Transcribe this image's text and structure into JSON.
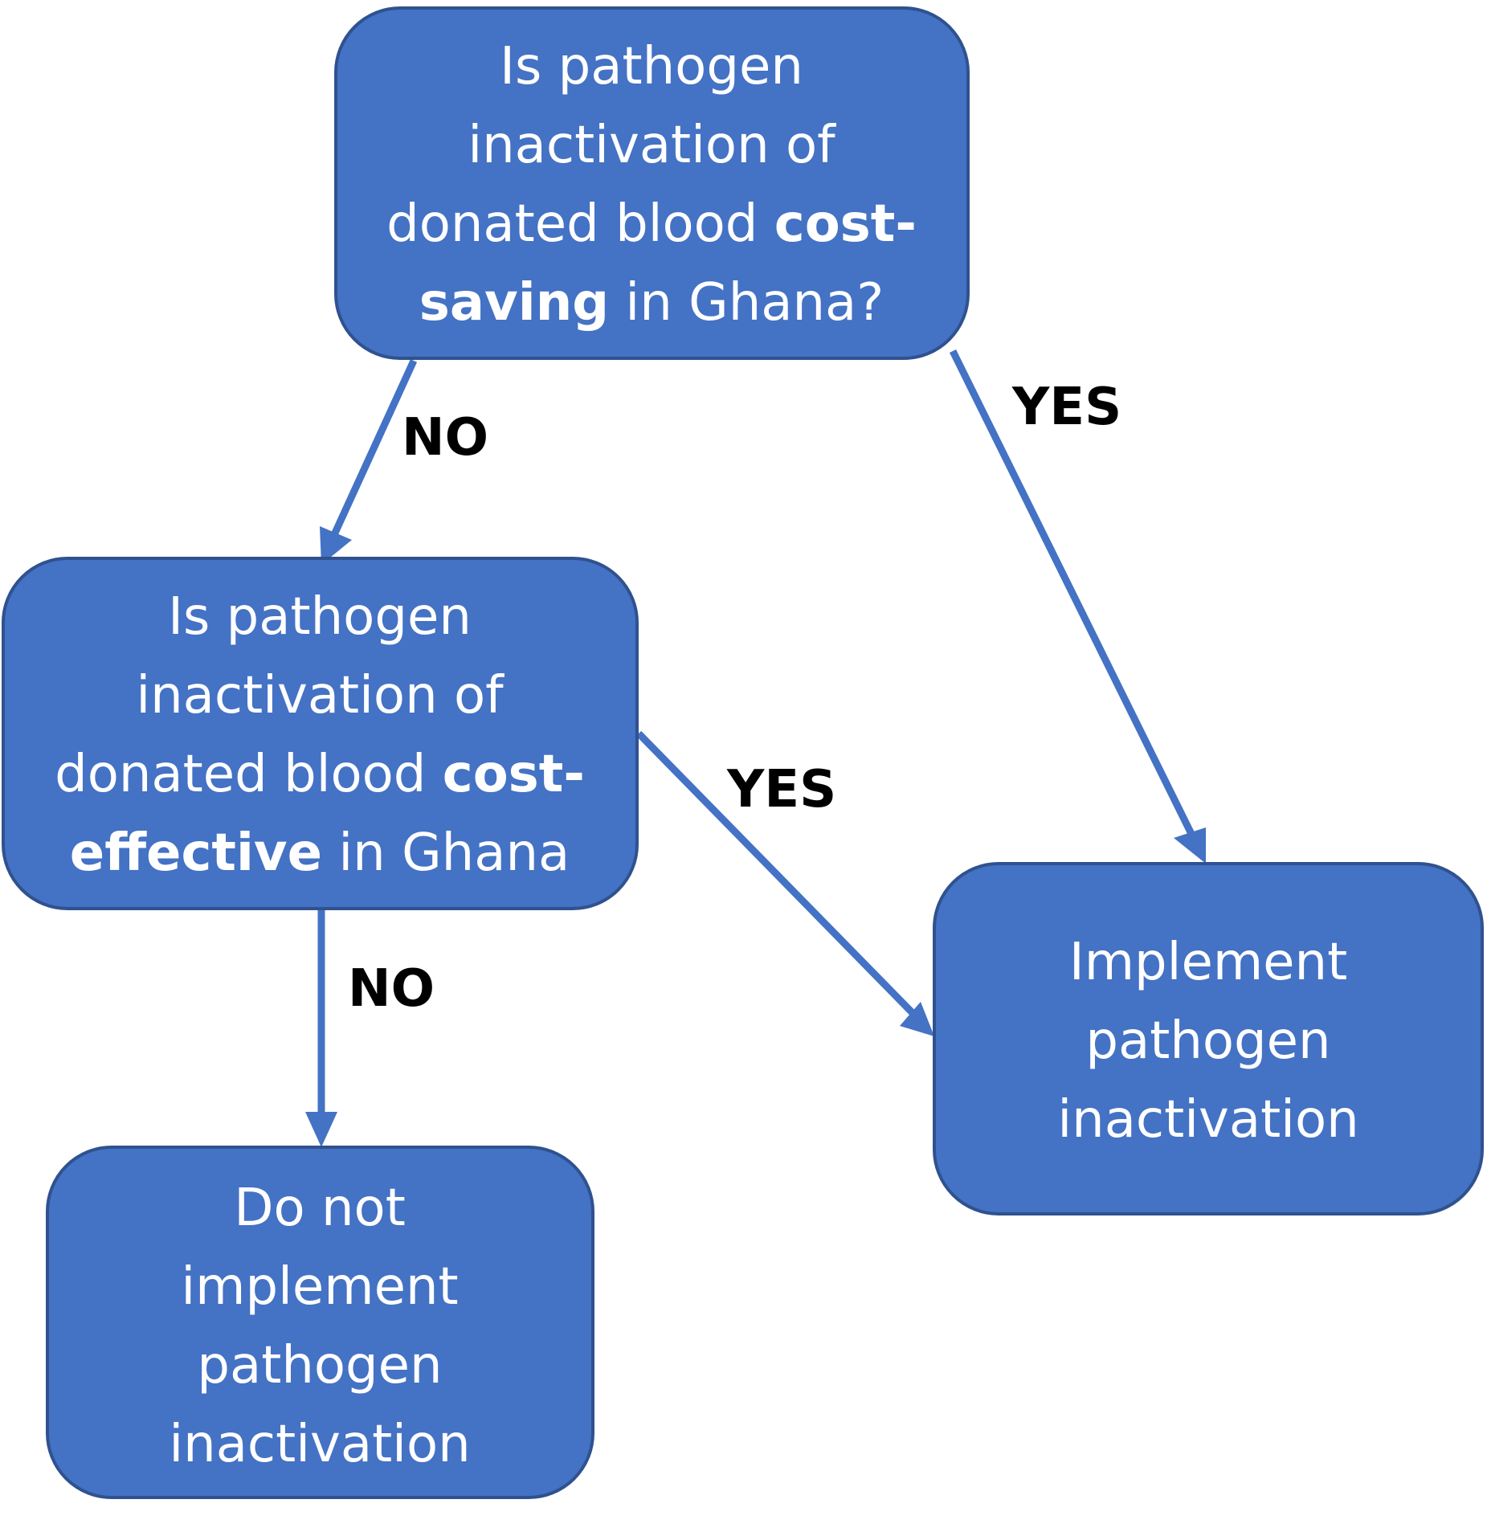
{
  "colors": {
    "node_fill": "#4472C4",
    "node_stroke": "#2F528F",
    "node_text": "#FFFFFF",
    "arrow": "#4472C4",
    "edge_label": "#000000",
    "background": "#FFFFFF"
  },
  "nodes": {
    "cost_saving_question": {
      "lines": [
        [
          {
            "text": "Is pathogen",
            "bold": false
          }
        ],
        [
          {
            "text": "inactivation of",
            "bold": false
          }
        ],
        [
          {
            "text": "donated blood ",
            "bold": false
          },
          {
            "text": "cost-",
            "bold": true
          }
        ],
        [
          {
            "text": "saving",
            "bold": true
          },
          {
            "text": " in Ghana?",
            "bold": false
          }
        ]
      ]
    },
    "cost_effective_question": {
      "lines": [
        [
          {
            "text": "Is pathogen",
            "bold": false
          }
        ],
        [
          {
            "text": "inactivation of",
            "bold": false
          }
        ],
        [
          {
            "text": "donated blood ",
            "bold": false
          },
          {
            "text": "cost-",
            "bold": true
          }
        ],
        [
          {
            "text": "effective",
            "bold": true
          },
          {
            "text": " in Ghana",
            "bold": false
          }
        ]
      ]
    },
    "implement": {
      "lines": [
        [
          {
            "text": "Implement",
            "bold": false
          }
        ],
        [
          {
            "text": "pathogen",
            "bold": false
          }
        ],
        [
          {
            "text": "inactivation",
            "bold": false
          }
        ]
      ]
    },
    "do_not_implement": {
      "lines": [
        [
          {
            "text": "Do not",
            "bold": false
          }
        ],
        [
          {
            "text": "implement",
            "bold": false
          }
        ],
        [
          {
            "text": "pathogen",
            "bold": false
          }
        ],
        [
          {
            "text": "inactivation",
            "bold": false
          }
        ]
      ]
    }
  },
  "edges": {
    "saving_no": {
      "from": "cost_saving_question",
      "to": "cost_effective_question",
      "label": "NO"
    },
    "saving_yes": {
      "from": "cost_saving_question",
      "to": "implement",
      "label": "YES"
    },
    "effective_yes": {
      "from": "cost_effective_question",
      "to": "implement",
      "label": "YES"
    },
    "effective_no": {
      "from": "cost_effective_question",
      "to": "do_not_implement",
      "label": "NO"
    }
  }
}
